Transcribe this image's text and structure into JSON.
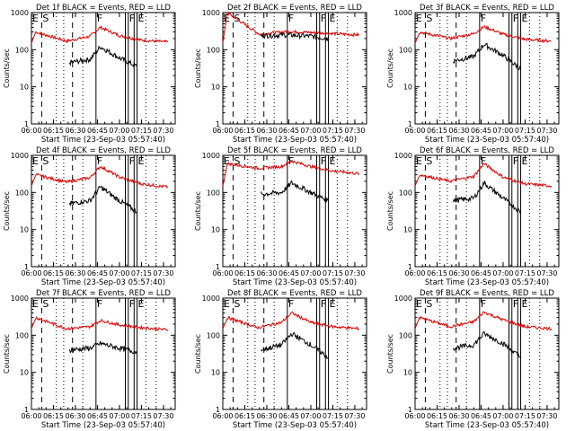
{
  "colors": {
    "background": "#ffffff",
    "axis": "#000000",
    "events": "#000000",
    "lld": "#e00000"
  },
  "chart_data": [
    {
      "type": "line",
      "panel": 1,
      "title": "Det 1f BLACK = Events, RED = LLD",
      "xlabel": "Start Time (23-Sep-03 05:57:40)",
      "ylabel": "Counts/sec",
      "yscale": "log",
      "ylim": [
        1,
        1000
      ],
      "yticks": [
        "1",
        "10",
        "100",
        "1000"
      ],
      "xlim": [
        "06:00",
        "07:38"
      ],
      "xticks": [
        "06:00",
        "06:15",
        "06:30",
        "06:45",
        "07:00",
        "07:15",
        "07:30"
      ],
      "markers": [
        {
          "label": "E",
          "x": "06:00"
        },
        {
          "label": "S",
          "x": "06:07"
        }
      ],
      "letters": [
        "F",
        "F",
        "E"
      ],
      "series": [
        {
          "name": "LLD",
          "values": [
            {
              "x": "06:03",
              "y": 300
            },
            {
              "x": "06:24",
              "y": 170
            },
            {
              "x": "06:40",
              "y": 230
            },
            {
              "x": "06:47",
              "y": 400
            },
            {
              "x": "07:00",
              "y": 240
            },
            {
              "x": "07:15",
              "y": 180
            },
            {
              "x": "07:33",
              "y": 160
            }
          ]
        },
        {
          "name": "Events",
          "values": [
            {
              "x": "06:26",
              "y": 45
            },
            {
              "x": "06:40",
              "y": 55
            },
            {
              "x": "06:47",
              "y": 120
            },
            {
              "x": "07:00",
              "y": 60
            },
            {
              "x": "07:12",
              "y": 35
            }
          ]
        }
      ]
    },
    {
      "type": "line",
      "panel": 2,
      "title": "Det 2f BLACK = Events, RED = LLD",
      "xlabel": "Start Time (23-Sep-03 05:57:40)",
      "ylabel": "Counts/sec",
      "yscale": "log",
      "ylim": [
        1,
        1000
      ],
      "yticks": [
        "1",
        "10",
        "100",
        "1000"
      ],
      "xlim": [
        "06:00",
        "07:38"
      ],
      "xticks": [
        "06:00",
        "06:15",
        "06:30",
        "06:45",
        "07:00",
        "07:15",
        "07:30"
      ],
      "markers": [
        {
          "label": "E",
          "x": "06:00"
        },
        {
          "label": "S",
          "x": "06:07"
        }
      ],
      "letters": [
        "F",
        "F",
        "E"
      ],
      "series": [
        {
          "name": "LLD",
          "values": [
            {
              "x": "06:03",
              "y": 1000
            },
            {
              "x": "06:25",
              "y": 260
            },
            {
              "x": "06:45",
              "y": 310
            },
            {
              "x": "07:00",
              "y": 290
            },
            {
              "x": "07:33",
              "y": 250
            }
          ]
        },
        {
          "name": "Events",
          "values": [
            {
              "x": "06:26",
              "y": 240
            },
            {
              "x": "06:45",
              "y": 250
            },
            {
              "x": "07:00",
              "y": 230
            },
            {
              "x": "07:12",
              "y": 200
            }
          ]
        }
      ]
    },
    {
      "type": "line",
      "panel": 3,
      "title": "Det 3f BLACK = Events, RED = LLD",
      "xlabel": "Start Time (23-Sep-03 05:57:40)",
      "ylabel": "Counts/sec",
      "yscale": "log",
      "ylim": [
        1,
        1000
      ],
      "yticks": [
        "1",
        "10",
        "100",
        "1000"
      ],
      "xlim": [
        "06:00",
        "07:38"
      ],
      "xticks": [
        "06:00",
        "06:15",
        "06:30",
        "06:45",
        "07:00",
        "07:15",
        "07:30"
      ],
      "markers": [
        {
          "label": "E",
          "x": "06:00"
        },
        {
          "label": "S",
          "x": "06:07"
        }
      ],
      "letters": [
        "F",
        "F",
        "E"
      ],
      "series": [
        {
          "name": "LLD",
          "values": [
            {
              "x": "06:03",
              "y": 300
            },
            {
              "x": "06:24",
              "y": 200
            },
            {
              "x": "06:40",
              "y": 270
            },
            {
              "x": "06:47",
              "y": 420
            },
            {
              "x": "07:00",
              "y": 260
            },
            {
              "x": "07:15",
              "y": 190
            },
            {
              "x": "07:33",
              "y": 170
            }
          ]
        },
        {
          "name": "Events",
          "values": [
            {
              "x": "06:26",
              "y": 50
            },
            {
              "x": "06:40",
              "y": 65
            },
            {
              "x": "06:47",
              "y": 140
            },
            {
              "x": "07:00",
              "y": 70
            },
            {
              "x": "07:12",
              "y": 30
            }
          ]
        }
      ]
    },
    {
      "type": "line",
      "panel": 4,
      "title": "Det 4f BLACK = Events, RED = LLD",
      "xlabel": "Start Time (23-Sep-03 05:57:40)",
      "ylabel": "Counts/sec",
      "yscale": "log",
      "ylim": [
        1,
        1000
      ],
      "yticks": [
        "1",
        "10",
        "100",
        "1000"
      ],
      "xlim": [
        "06:00",
        "07:38"
      ],
      "xticks": [
        "06:00",
        "06:15",
        "06:30",
        "06:45",
        "07:00",
        "07:15",
        "07:30"
      ],
      "markers": [
        {
          "label": "E",
          "x": "06:00"
        },
        {
          "label": "S",
          "x": "06:07"
        }
      ],
      "letters": [
        "F",
        "F",
        "E"
      ],
      "series": [
        {
          "name": "LLD",
          "values": [
            {
              "x": "06:03",
              "y": 300
            },
            {
              "x": "06:24",
              "y": 190
            },
            {
              "x": "06:40",
              "y": 250
            },
            {
              "x": "06:47",
              "y": 500
            },
            {
              "x": "07:00",
              "y": 260
            },
            {
              "x": "07:15",
              "y": 170
            },
            {
              "x": "07:33",
              "y": 140
            }
          ]
        },
        {
          "name": "Events",
          "values": [
            {
              "x": "06:26",
              "y": 50
            },
            {
              "x": "06:40",
              "y": 60
            },
            {
              "x": "06:47",
              "y": 140
            },
            {
              "x": "07:00",
              "y": 60
            },
            {
              "x": "07:12",
              "y": 30
            }
          ]
        }
      ]
    },
    {
      "type": "line",
      "panel": 5,
      "title": "Det 5f BLACK = Events, RED = LLD",
      "xlabel": "Start Time (23-Sep-03 05:57:40)",
      "ylabel": "Counts/sec",
      "yscale": "log",
      "ylim": [
        1,
        1000
      ],
      "yticks": [
        "1",
        "10",
        "100",
        "1000"
      ],
      "xlim": [
        "06:00",
        "07:38"
      ],
      "xticks": [
        "06:00",
        "06:15",
        "06:30",
        "06:45",
        "07:00",
        "07:15",
        "07:30"
      ],
      "markers": [
        {
          "label": "E",
          "x": "06:00"
        },
        {
          "label": "S",
          "x": "06:07"
        }
      ],
      "letters": [
        "F",
        "F",
        "E"
      ],
      "series": [
        {
          "name": "LLD",
          "values": [
            {
              "x": "06:03",
              "y": 600
            },
            {
              "x": "06:24",
              "y": 450
            },
            {
              "x": "06:40",
              "y": 500
            },
            {
              "x": "06:47",
              "y": 700
            },
            {
              "x": "07:00",
              "y": 500
            },
            {
              "x": "07:15",
              "y": 380
            },
            {
              "x": "07:33",
              "y": 320
            }
          ]
        },
        {
          "name": "Events",
          "values": [
            {
              "x": "06:26",
              "y": 90
            },
            {
              "x": "06:40",
              "y": 100
            },
            {
              "x": "06:47",
              "y": 180
            },
            {
              "x": "07:00",
              "y": 100
            },
            {
              "x": "07:12",
              "y": 60
            }
          ]
        }
      ]
    },
    {
      "type": "line",
      "panel": 6,
      "title": "Det 6f BLACK = Events, RED = LLD",
      "xlabel": "Start Time (23-Sep-03 05:57:40)",
      "ylabel": "Counts/sec",
      "yscale": "log",
      "ylim": [
        1,
        1000
      ],
      "yticks": [
        "1",
        "10",
        "100",
        "1000"
      ],
      "xlim": [
        "06:00",
        "07:38"
      ],
      "xticks": [
        "06:00",
        "06:15",
        "06:30",
        "06:45",
        "07:00",
        "07:15",
        "07:30"
      ],
      "markers": [
        {
          "label": "E",
          "x": "06:00"
        },
        {
          "label": "S",
          "x": "06:07"
        }
      ],
      "letters": [
        "F",
        "F",
        "E"
      ],
      "series": [
        {
          "name": "LLD",
          "values": [
            {
              "x": "06:03",
              "y": 300
            },
            {
              "x": "06:24",
              "y": 200
            },
            {
              "x": "06:40",
              "y": 270
            },
            {
              "x": "06:47",
              "y": 600
            },
            {
              "x": "07:00",
              "y": 260
            },
            {
              "x": "07:15",
              "y": 170
            },
            {
              "x": "07:33",
              "y": 150
            }
          ]
        },
        {
          "name": "Events",
          "values": [
            {
              "x": "06:26",
              "y": 60
            },
            {
              "x": "06:40",
              "y": 70
            },
            {
              "x": "06:47",
              "y": 180
            },
            {
              "x": "07:00",
              "y": 70
            },
            {
              "x": "07:12",
              "y": 30
            }
          ]
        }
      ]
    },
    {
      "type": "line",
      "panel": 7,
      "title": "Det 7f BLACK = Events, RED = LLD",
      "xlabel": "Start Time (23-Sep-03 05:57:40)",
      "ylabel": "Counts/sec",
      "yscale": "log",
      "ylim": [
        1,
        1000
      ],
      "yticks": [
        "1",
        "10",
        "100",
        "1000"
      ],
      "xlim": [
        "06:00",
        "07:38"
      ],
      "xticks": [
        "06:00",
        "06:15",
        "06:30",
        "06:45",
        "07:00",
        "07:15",
        "07:30"
      ],
      "markers": [
        {
          "label": "E",
          "x": "06:00"
        },
        {
          "label": "S",
          "x": "06:07"
        }
      ],
      "letters": [
        "F",
        "F",
        "E"
      ],
      "series": [
        {
          "name": "LLD",
          "values": [
            {
              "x": "06:03",
              "y": 300
            },
            {
              "x": "06:24",
              "y": 150
            },
            {
              "x": "06:40",
              "y": 170
            },
            {
              "x": "06:47",
              "y": 250
            },
            {
              "x": "07:00",
              "y": 190
            },
            {
              "x": "07:15",
              "y": 160
            },
            {
              "x": "07:33",
              "y": 140
            }
          ]
        },
        {
          "name": "Events",
          "values": [
            {
              "x": "06:26",
              "y": 40
            },
            {
              "x": "06:40",
              "y": 45
            },
            {
              "x": "06:47",
              "y": 60
            },
            {
              "x": "07:00",
              "y": 45
            },
            {
              "x": "07:12",
              "y": 35
            }
          ]
        }
      ]
    },
    {
      "type": "line",
      "panel": 8,
      "title": "Det 8f BLACK = Events, RED = LLD",
      "xlabel": "Start Time (23-Sep-03 05:57:40)",
      "ylabel": "Counts/sec",
      "yscale": "log",
      "ylim": [
        1,
        1000
      ],
      "yticks": [
        "1",
        "10",
        "100",
        "1000"
      ],
      "xlim": [
        "06:00",
        "07:38"
      ],
      "xticks": [
        "06:00",
        "06:15",
        "06:30",
        "06:45",
        "07:00",
        "07:15",
        "07:30"
      ],
      "markers": [
        {
          "label": "E",
          "x": "06:00"
        },
        {
          "label": "S",
          "x": "06:07"
        }
      ],
      "letters": [
        "F",
        "F",
        "E"
      ],
      "series": [
        {
          "name": "LLD",
          "values": [
            {
              "x": "06:03",
              "y": 300
            },
            {
              "x": "06:24",
              "y": 160
            },
            {
              "x": "06:40",
              "y": 220
            },
            {
              "x": "06:47",
              "y": 400
            },
            {
              "x": "07:00",
              "y": 220
            },
            {
              "x": "07:15",
              "y": 170
            },
            {
              "x": "07:33",
              "y": 150
            }
          ]
        },
        {
          "name": "Events",
          "values": [
            {
              "x": "06:26",
              "y": 40
            },
            {
              "x": "06:40",
              "y": 55
            },
            {
              "x": "06:47",
              "y": 110
            },
            {
              "x": "07:00",
              "y": 55
            },
            {
              "x": "07:12",
              "y": 25
            }
          ]
        }
      ]
    },
    {
      "type": "line",
      "panel": 9,
      "title": "Det 9f BLACK = Events, RED = LLD",
      "xlabel": "Start Time (23-Sep-03 05:57:40)",
      "ylabel": "Counts/sec",
      "yscale": "log",
      "ylim": [
        1,
        1000
      ],
      "yticks": [
        "1",
        "10",
        "100",
        "1000"
      ],
      "xlim": [
        "06:00",
        "07:38"
      ],
      "xticks": [
        "06:00",
        "06:15",
        "06:30",
        "06:45",
        "07:00",
        "07:15",
        "07:30"
      ],
      "markers": [
        {
          "label": "E",
          "x": "06:00"
        },
        {
          "label": "S",
          "x": "06:07"
        }
      ],
      "letters": [
        "F",
        "F",
        "E"
      ],
      "series": [
        {
          "name": "LLD",
          "values": [
            {
              "x": "06:03",
              "y": 300
            },
            {
              "x": "06:24",
              "y": 170
            },
            {
              "x": "06:40",
              "y": 230
            },
            {
              "x": "06:47",
              "y": 420
            },
            {
              "x": "07:00",
              "y": 260
            },
            {
              "x": "07:15",
              "y": 170
            },
            {
              "x": "07:33",
              "y": 150
            }
          ]
        },
        {
          "name": "Events",
          "values": [
            {
              "x": "06:26",
              "y": 45
            },
            {
              "x": "06:40",
              "y": 55
            },
            {
              "x": "06:47",
              "y": 110
            },
            {
              "x": "07:00",
              "y": 60
            },
            {
              "x": "07:12",
              "y": 25
            }
          ]
        }
      ]
    }
  ]
}
